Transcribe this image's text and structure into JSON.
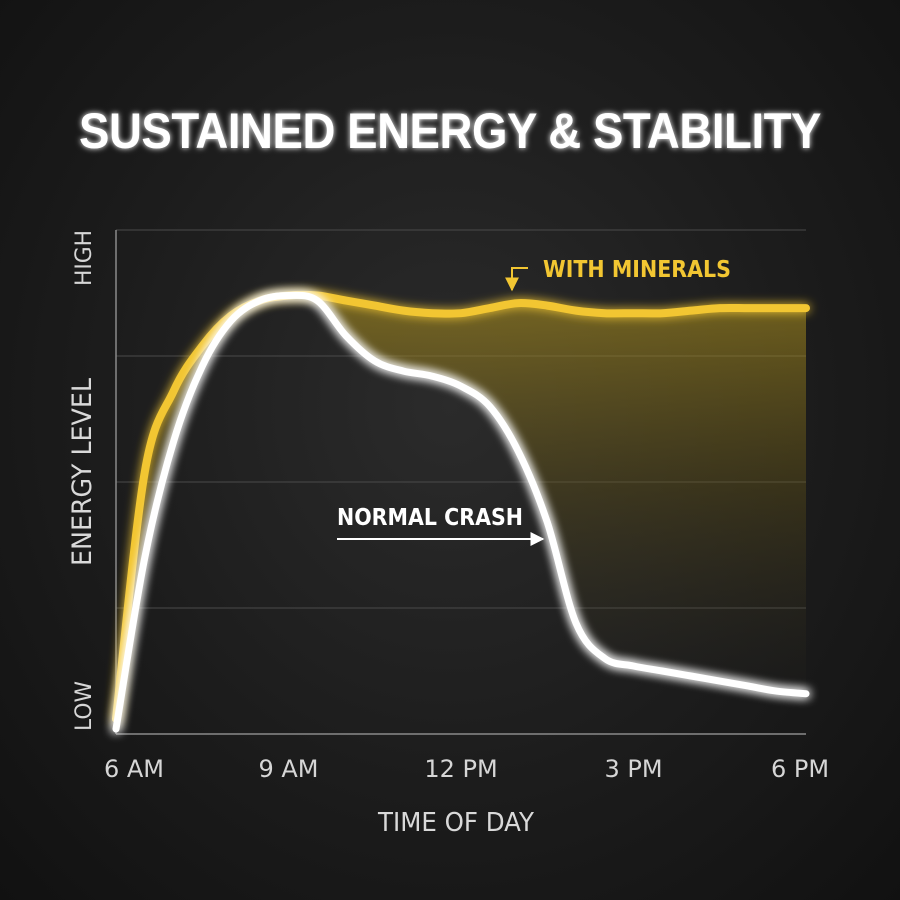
{
  "chart_data": {
    "type": "line",
    "title": "SUSTAINED ENERGY & STABILITY",
    "xlabel": "TIME OF DAY",
    "ylabel": "ENERGY LEVEL",
    "x_ticks": [
      "6 AM",
      "9 AM",
      "12 PM",
      "3 PM",
      "6 PM"
    ],
    "y_tick_labels": {
      "low": "LOW",
      "high": "HIGH"
    },
    "xlim": [
      6,
      18
    ],
    "ylim": [
      0,
      100
    ],
    "grid": true,
    "series": [
      {
        "name": "WITH MINERALS",
        "color": "#f2c632",
        "x": [
          6,
          6.5,
          7,
          7.5,
          8,
          8.5,
          9,
          9.5,
          10,
          10.5,
          11,
          11.5,
          12,
          12.5,
          13,
          13.5,
          14,
          14.5,
          15,
          15.5,
          16,
          16.5,
          17,
          17.5,
          18
        ],
        "y": [
          3,
          52,
          68,
          77,
          83,
          86,
          87,
          87,
          86,
          85,
          84,
          83.5,
          83.5,
          84.5,
          85.5,
          85,
          84,
          83.5,
          83.5,
          83.5,
          84,
          84.5,
          84.5,
          84.5,
          84.5
        ]
      },
      {
        "name": "NORMAL CRASH",
        "color": "#ffffff",
        "x": [
          6,
          6.5,
          7,
          7.5,
          8,
          8.5,
          9,
          9.5,
          10,
          10.5,
          11,
          11.5,
          12,
          12.5,
          13,
          13.5,
          14,
          14.5,
          15,
          15.5,
          16,
          16.5,
          17,
          17.5,
          18
        ],
        "y": [
          1,
          35,
          58,
          73,
          82,
          86,
          87,
          86,
          79,
          74,
          72,
          71,
          69,
          65,
          56,
          42,
          22,
          15,
          13.5,
          12.5,
          11.5,
          10.5,
          9.5,
          8.5,
          8
        ]
      }
    ],
    "annotations": [
      {
        "text": "WITH MINERALS",
        "series": "WITH MINERALS"
      },
      {
        "text": "NORMAL CRASH",
        "series": "NORMAL CRASH"
      }
    ]
  }
}
